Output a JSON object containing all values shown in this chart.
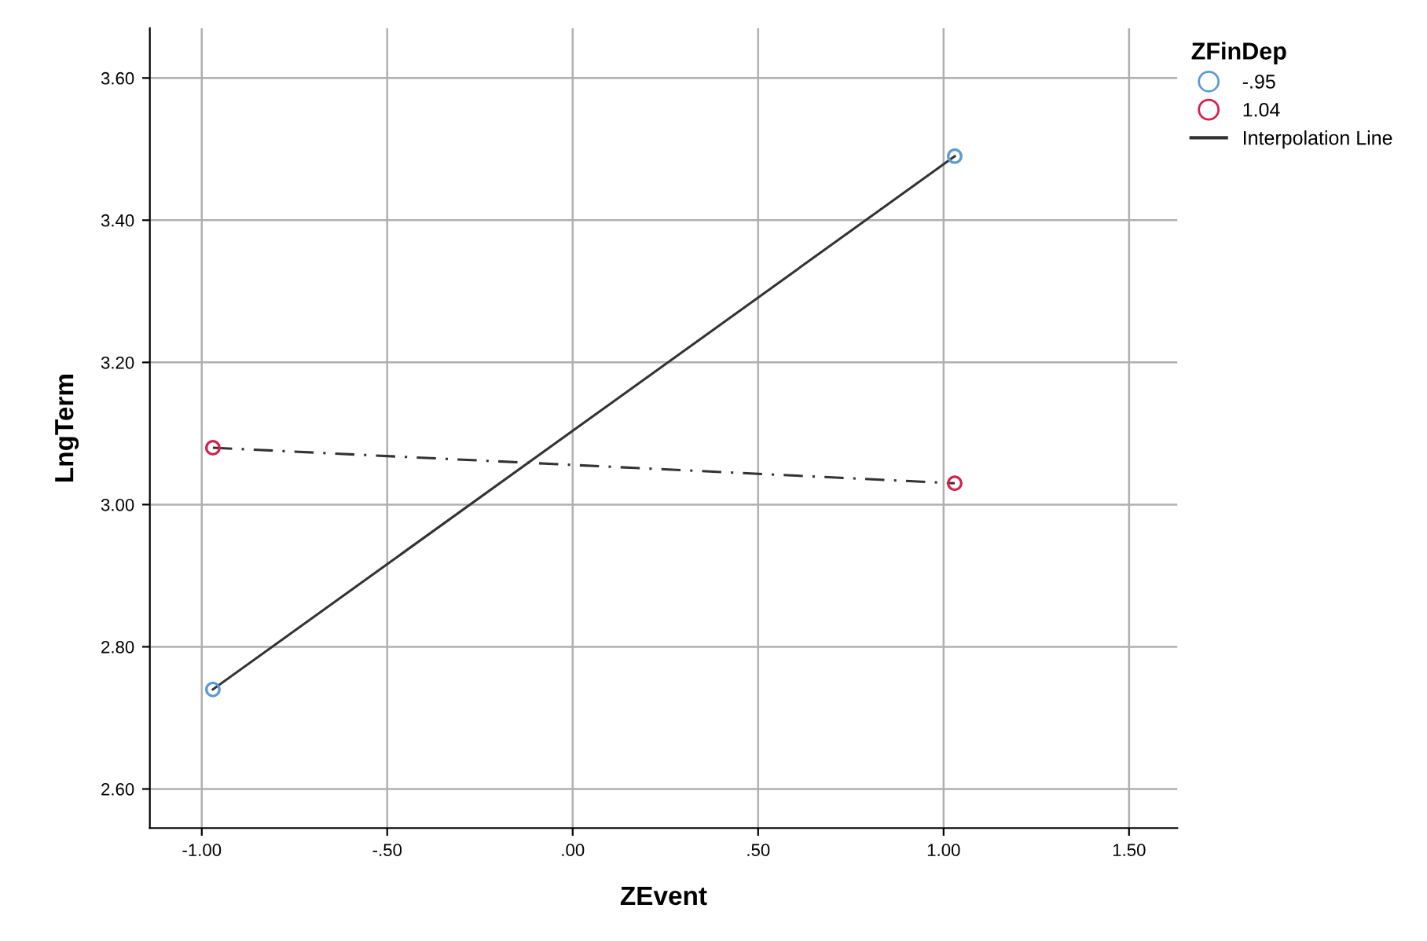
{
  "chart_data": {
    "type": "scatter",
    "xlabel": "ZEvent",
    "ylabel": "LngTerm",
    "legend_title": "ZFinDep",
    "x": [
      -0.97,
      1.03
    ],
    "series": [
      {
        "name": "-.95",
        "color": "#5b9bd5",
        "values": [
          2.74,
          3.49
        ],
        "marker": "circle"
      },
      {
        "name": "1.04",
        "color": "#d6204b",
        "values": [
          3.08,
          3.03
        ],
        "marker": "circle"
      },
      {
        "name": "Interpolation Line",
        "type": "line",
        "color": "#333333",
        "values": [
          2.74,
          3.49
        ],
        "line_style": "solid"
      },
      {
        "type": "line",
        "color": "#333333",
        "values": [
          3.08,
          3.03
        ],
        "line_style": "dashdot"
      }
    ],
    "xlim": [
      -1.14,
      1.63
    ],
    "ylim": [
      2.545,
      3.67
    ],
    "xticks": [
      {
        "value": -1.0,
        "label": "-1.00"
      },
      {
        "value": -0.5,
        "label": "-.50"
      },
      {
        "value": 0,
        "label": ".00"
      },
      {
        "value": 0.5,
        "label": ".50"
      },
      {
        "value": 1.0,
        "label": "1.00"
      },
      {
        "value": 1.5,
        "label": "1.50"
      }
    ],
    "yticks": [
      {
        "value": 2.6,
        "label": "2.60"
      },
      {
        "value": 2.8,
        "label": "2.80"
      },
      {
        "value": 3.0,
        "label": "3.00"
      },
      {
        "value": 3.2,
        "label": "3.20"
      },
      {
        "value": 3.4,
        "label": "3.40"
      },
      {
        "value": 3.6,
        "label": "3.60"
      }
    ],
    "grid": true,
    "legend": "top right"
  }
}
